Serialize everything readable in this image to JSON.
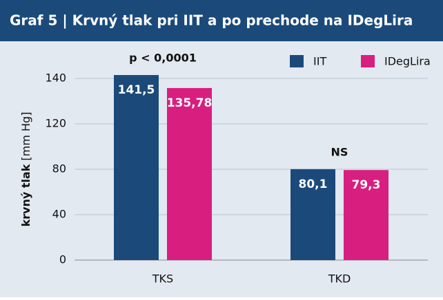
{
  "chart_data": {
    "type": "bar",
    "title": "Graf 5 | Krvný tlak pri IIT a po prechode na IDegLira",
    "y_label": {
      "bold": "krvný tlak",
      "unit": "[mm Hg]"
    },
    "categories": [
      "TKS",
      "TKD"
    ],
    "series": [
      {
        "name": "IIT",
        "color": "#1b4a7a",
        "values": [
          141.5,
          80.1
        ],
        "value_labels": [
          "141,5",
          "80,1"
        ]
      },
      {
        "name": "IDegLira",
        "color": "#d81f7f",
        "values": [
          135.78,
          79.3
        ],
        "value_labels": [
          "135,78",
          "79,3"
        ]
      }
    ],
    "annotations": [
      "p < 0,0001",
      "NS"
    ],
    "ylim": [
      0,
      140
    ],
    "yticks": [
      0,
      40,
      80,
      120,
      140
    ],
    "grid": true,
    "legend": "top-right"
  }
}
